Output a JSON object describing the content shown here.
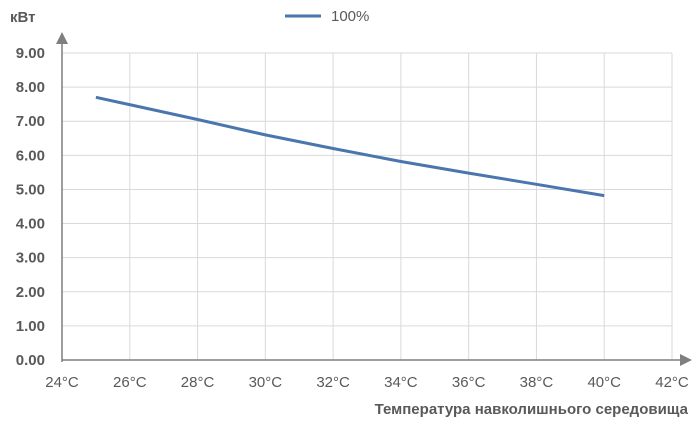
{
  "chart_data": {
    "type": "line",
    "title": "",
    "xlabel": "Температура навколишнього середовища",
    "ylabel": "кВт",
    "x_ticks": [
      "24°C",
      "26°C",
      "28°C",
      "30°C",
      "32°C",
      "34°C",
      "36°C",
      "38°C",
      "40°C",
      "42°C"
    ],
    "y_ticks": [
      "0.00",
      "1.00",
      "2.00",
      "3.00",
      "4.00",
      "5.00",
      "6.00",
      "7.00",
      "8.00",
      "9.00"
    ],
    "xlim": [
      24,
      42
    ],
    "ylim": [
      0,
      9
    ],
    "grid": true,
    "legend_position": "top",
    "series": [
      {
        "name": "100%",
        "color": "#4a76ad",
        "x": [
          25,
          28,
          30,
          32,
          34,
          36,
          38,
          40
        ],
        "y": [
          7.7,
          7.05,
          6.6,
          6.2,
          5.82,
          5.48,
          5.15,
          4.82
        ]
      }
    ]
  }
}
